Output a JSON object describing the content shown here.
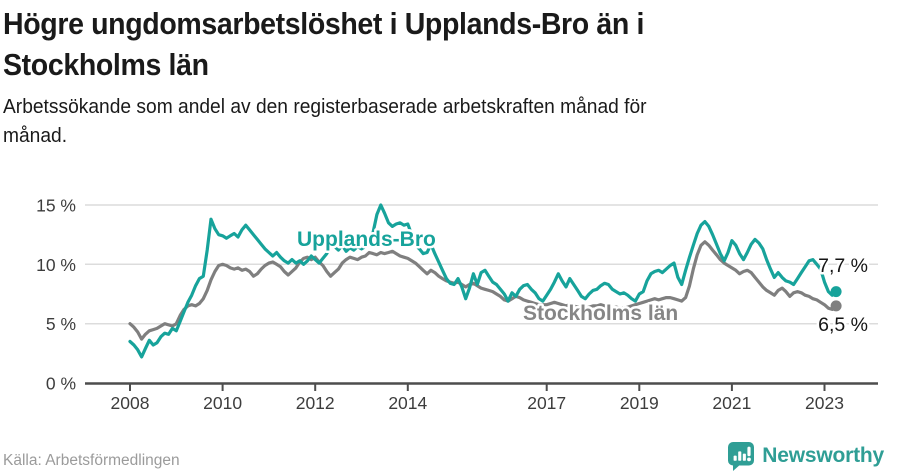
{
  "header": {
    "title": "Högre ungdomsarbetslöshet i Upplands-Bro än i\nStockholms län",
    "subtitle": "Arbetssökande som andel av den registerbaserade arbetskraften månad för\nmånad."
  },
  "footer": {
    "source": "Källa: Arbetsförmedlingen",
    "brand": "Newsworthy"
  },
  "colors": {
    "accent_teal": "#17A39B",
    "line_gray": "#7F7F7F",
    "brand_teal": "#2F9E95",
    "grid": "#DCDCDC",
    "axis": "#4D4D4D",
    "label_text": "#3D3D3D"
  },
  "chart_data": {
    "type": "line",
    "title": "Högre ungdomsarbetslöshet i Upplands-Bro än i Stockholms län",
    "subtitle": "Arbetssökande som andel av den registerbaserade arbetskraften månad för månad.",
    "xlabel": "",
    "ylabel": "%",
    "grid": true,
    "legend_position": "inline",
    "x_start_year": 2008,
    "x_step_months": 1,
    "xlim": [
      2007.05,
      2024.15
    ],
    "ylim": [
      0,
      15.5
    ],
    "y_ticks": [
      0,
      5,
      10,
      15
    ],
    "y_tick_labels": [
      "0 %",
      "5 %",
      "10 %",
      "15 %"
    ],
    "x_ticks": [
      2008,
      2010,
      2012,
      2014,
      2017,
      2019,
      2021,
      2023
    ],
    "x_tick_labels": [
      "2008",
      "2010",
      "2012",
      "2014",
      "2017",
      "2019",
      "2021",
      "2023"
    ],
    "series": [
      {
        "name": "Upplands-Bro",
        "color": "#17A39B",
        "end_label": "7,7 %",
        "values": [
          3.5,
          3.2,
          2.8,
          2.2,
          2.9,
          3.6,
          3.2,
          3.4,
          3.9,
          4.2,
          4.1,
          4.6,
          4.4,
          5.2,
          6.0,
          6.8,
          7.4,
          8.2,
          8.8,
          9.0,
          11.2,
          13.8,
          13.0,
          12.5,
          12.4,
          12.2,
          12.4,
          12.6,
          12.3,
          12.9,
          13.3,
          12.9,
          12.5,
          12.1,
          11.7,
          11.3,
          11.0,
          10.7,
          11.0,
          10.6,
          10.3,
          10.1,
          10.4,
          10.1,
          10.3,
          10.0,
          10.3,
          10.7,
          10.4,
          10.1,
          10.5,
          10.9,
          11.6,
          11.5,
          11.2,
          11.6,
          11.1,
          11.4,
          11.2,
          11.5,
          11.3,
          11.5,
          12.0,
          12.7,
          14.2,
          15.0,
          14.3,
          13.5,
          13.2,
          13.4,
          13.5,
          13.3,
          13.4,
          12.5,
          11.6,
          11.3,
          10.9,
          11.0,
          11.7,
          10.9,
          10.2,
          9.5,
          8.8,
          8.4,
          8.3,
          8.8,
          8.1,
          7.1,
          8.0,
          9.2,
          8.3,
          9.3,
          9.5,
          9.0,
          8.5,
          8.3,
          7.9,
          7.5,
          6.9,
          7.6,
          7.3,
          7.9,
          8.2,
          8.3,
          7.9,
          7.6,
          7.1,
          6.9,
          7.4,
          7.9,
          8.5,
          9.2,
          8.6,
          8.1,
          8.8,
          8.3,
          7.8,
          7.3,
          7.1,
          7.5,
          7.8,
          7.9,
          8.2,
          8.4,
          8.3,
          7.9,
          7.7,
          7.5,
          7.6,
          7.4,
          7.1,
          6.9,
          7.5,
          7.7,
          8.6,
          9.2,
          9.4,
          9.5,
          9.3,
          9.6,
          9.9,
          10.1,
          8.9,
          8.3,
          9.5,
          10.6,
          11.6,
          12.6,
          13.3,
          13.6,
          13.2,
          12.5,
          11.7,
          10.9,
          10.3,
          11.0,
          12.0,
          11.6,
          10.9,
          10.4,
          11.0,
          11.7,
          12.1,
          11.8,
          11.3,
          10.4,
          9.6,
          8.9,
          9.3,
          8.9,
          8.6,
          8.5,
          8.3,
          8.8,
          9.3,
          9.8,
          10.3,
          10.4,
          10.0,
          9.6,
          8.5,
          7.7,
          7.4,
          7.7
        ]
      },
      {
        "name": "Stockholms län",
        "color": "#7F7F7F",
        "end_label": "6,5 %",
        "values": [
          5.0,
          4.7,
          4.3,
          3.7,
          4.1,
          4.4,
          4.5,
          4.6,
          4.8,
          5.0,
          4.9,
          4.8,
          5.0,
          5.7,
          6.2,
          6.5,
          6.6,
          6.5,
          6.7,
          7.1,
          7.8,
          8.7,
          9.4,
          9.9,
          10.0,
          9.9,
          9.7,
          9.6,
          9.7,
          9.5,
          9.6,
          9.4,
          9.0,
          9.2,
          9.6,
          9.9,
          10.1,
          10.2,
          10.0,
          9.8,
          9.4,
          9.1,
          9.4,
          9.7,
          10.2,
          10.5,
          10.6,
          10.4,
          10.6,
          10.2,
          9.9,
          9.4,
          9.0,
          9.3,
          9.6,
          10.1,
          10.4,
          10.6,
          10.5,
          10.4,
          10.6,
          10.7,
          11.0,
          10.9,
          10.8,
          11.0,
          10.9,
          11.0,
          11.1,
          10.9,
          10.7,
          10.6,
          10.5,
          10.3,
          10.1,
          9.8,
          9.5,
          9.2,
          9.5,
          9.3,
          9.0,
          8.8,
          8.6,
          8.5,
          8.4,
          8.5,
          8.3,
          8.1,
          8.3,
          8.4,
          8.2,
          8.0,
          7.9,
          7.8,
          7.7,
          7.5,
          7.3,
          7.0,
          6.9,
          7.1,
          7.3,
          7.2,
          7.0,
          6.9,
          6.8,
          6.7,
          6.6,
          6.6,
          6.6,
          6.7,
          6.8,
          6.7,
          6.6,
          6.5,
          6.6,
          6.5,
          6.4,
          6.3,
          6.3,
          6.4,
          6.5,
          6.5,
          6.6,
          6.5,
          6.4,
          6.3,
          6.4,
          6.3,
          6.3,
          6.4,
          6.5,
          6.6,
          6.7,
          6.8,
          6.9,
          7.0,
          7.1,
          7.0,
          7.1,
          7.2,
          7.2,
          7.1,
          7.0,
          6.9,
          7.2,
          8.2,
          9.6,
          10.8,
          11.6,
          11.9,
          11.6,
          11.2,
          10.8,
          10.4,
          10.1,
          9.9,
          9.7,
          9.5,
          9.2,
          9.4,
          9.5,
          9.3,
          8.9,
          8.5,
          8.1,
          7.8,
          7.6,
          7.4,
          7.8,
          8.0,
          7.7,
          7.3,
          7.6,
          7.7,
          7.6,
          7.4,
          7.3,
          7.1,
          7.0,
          6.8,
          6.6,
          6.3,
          6.2,
          6.5
        ]
      }
    ]
  }
}
